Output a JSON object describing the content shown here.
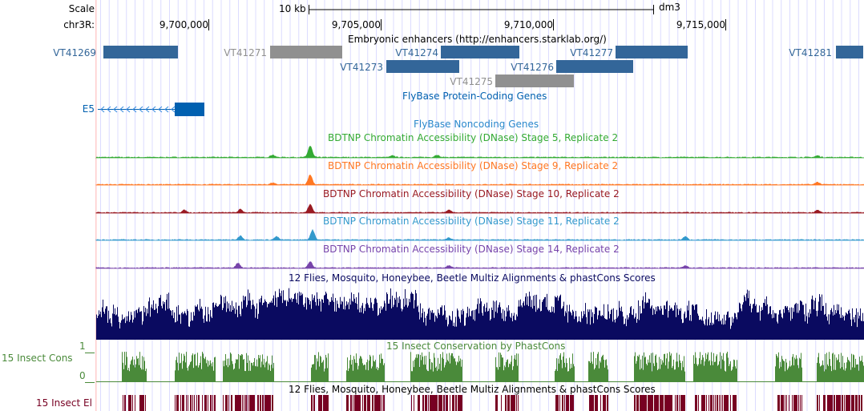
{
  "ruler": {
    "scale_label": "Scale",
    "scale_value": "10 kb",
    "assembly": "dm3",
    "chrom_label": "chr3R:",
    "ticks": [
      {
        "label": "9,700,000"
      },
      {
        "label": "9,705,000"
      },
      {
        "label": "9,710,000"
      },
      {
        "label": "9,715,000"
      }
    ]
  },
  "enhancers": {
    "title": "Embryonic enhancers (http://enhancers.starklab.org/)",
    "items": [
      {
        "label": "VT41269",
        "color": "#336699"
      },
      {
        "label": "VT41271",
        "color": "#909090"
      },
      {
        "label": "VT41274",
        "color": "#336699"
      },
      {
        "label": "VT41277",
        "color": "#336699"
      },
      {
        "label": "VT41281",
        "color": "#336699"
      },
      {
        "label": "VT41273",
        "color": "#336699"
      },
      {
        "label": "VT41276",
        "color": "#336699"
      },
      {
        "label": "VT41275",
        "color": "#909090"
      }
    ]
  },
  "genes": {
    "title": "FlyBase Protein-Coding Genes",
    "gene": "E5",
    "color": "#0060b0"
  },
  "noncoding": {
    "title": "FlyBase Noncoding Genes"
  },
  "dnase": [
    {
      "title": "BDTNP Chromatin Accessibility (DNase) Stage 5, Replicate 2",
      "color": "#33aa33"
    },
    {
      "title": "BDTNP Chromatin Accessibility (DNase) Stage 9, Replicate 2",
      "color": "#ff7722"
    },
    {
      "title": "BDTNP Chromatin Accessibility (DNase) Stage 10, Replicate 2",
      "color": "#991a22"
    },
    {
      "title": "BDTNP Chromatin Accessibility (DNase) Stage 11, Replicate 2",
      "color": "#3399cc"
    },
    {
      "title": "BDTNP Chromatin Accessibility (DNase) Stage 14, Replicate 2",
      "color": "#7744aa"
    }
  ],
  "multiz": {
    "title": "12 Flies, Mosquito, Honeybee, Beetle Multiz Alignments & phastCons Scores",
    "color": "#0a0a60"
  },
  "cons": {
    "title": "15 Insect Conservation by PhastCons",
    "label": "15 Insect Cons",
    "ymax": "1",
    "ymin": "0",
    "color": "#4a8a3a"
  },
  "elements": {
    "title": "12 Flies, Mosquito, Honeybee, Beetle Multiz Alignments & phastCons Scores",
    "label": "15 Insect El",
    "color": "#770022"
  }
}
